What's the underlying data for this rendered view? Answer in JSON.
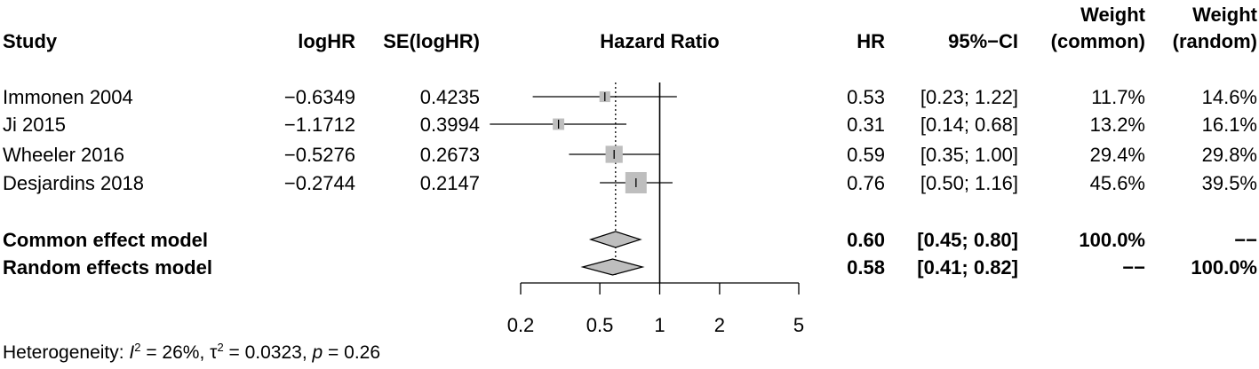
{
  "headers": {
    "study": "Study",
    "loghr": "logHR",
    "se": "SE(logHR)",
    "plot": "Hazard Ratio",
    "hr": "HR",
    "ci": "95%−CI",
    "weight_common_1": "Weight",
    "weight_common_2": "(common)",
    "weight_random_1": "Weight",
    "weight_random_2": "(random)"
  },
  "chart_data": {
    "type": "forest",
    "x_scale": "log",
    "xlim": [
      0.2,
      5
    ],
    "x_ticks": [
      "0.2",
      "0.5",
      "1",
      "2",
      "5"
    ],
    "reference_line": 1,
    "studies": [
      {
        "study": "Immonen 2004",
        "loghr": "−0.6349",
        "se": "0.4235",
        "hr_val": 0.53,
        "lo": 0.23,
        "hi": 1.22,
        "hr": "0.53",
        "ci": "[0.23; 1.22]",
        "w_common": "11.7%",
        "w_random": "14.6%",
        "weight": 11.7
      },
      {
        "study": "Ji 2015",
        "loghr": "−1.1712",
        "se": "0.3994",
        "hr_val": 0.31,
        "lo": 0.14,
        "hi": 0.68,
        "hr": "0.31",
        "ci": "[0.14; 0.68]",
        "w_common": "13.2%",
        "w_random": "16.1%",
        "weight": 13.2
      },
      {
        "study": "Wheeler 2016",
        "loghr": "−0.5276",
        "se": "0.2673",
        "hr_val": 0.59,
        "lo": 0.35,
        "hi": 1.0,
        "hr": "0.59",
        "ci": "[0.35; 1.00]",
        "w_common": "29.4%",
        "w_random": "29.8%",
        "weight": 29.4
      },
      {
        "study": "Desjardins 2018",
        "loghr": "−0.2744",
        "se": "0.2147",
        "hr_val": 0.76,
        "lo": 0.5,
        "hi": 1.16,
        "hr": "0.76",
        "ci": "[0.50; 1.16]",
        "w_common": "45.6%",
        "w_random": "39.5%",
        "weight": 45.6
      }
    ],
    "models": [
      {
        "label": "Common effect model",
        "hr_val": 0.6,
        "lo": 0.45,
        "hi": 0.8,
        "hr": "0.60",
        "ci": "[0.45; 0.80]",
        "w_common": "100.0%",
        "w_random": "−−"
      },
      {
        "label": "Random effects model",
        "hr_val": 0.58,
        "lo": 0.41,
        "hi": 0.82,
        "hr": "0.58",
        "ci": "[0.41; 0.82]",
        "w_common": "−−",
        "w_random": "100.0%"
      }
    ]
  },
  "heterogeneity": {
    "prefix": "Heterogeneity: ",
    "i2_symbol": "I",
    "i2_value": " = 26%, ",
    "tau_symbol": "τ",
    "tau_value": " = 0.0323, ",
    "p_symbol": "p",
    "p_value": " = 0.26"
  },
  "colors": {
    "square_fill": "#bebebe",
    "diamond_fill": "#bebebe",
    "stroke": "#000000"
  }
}
